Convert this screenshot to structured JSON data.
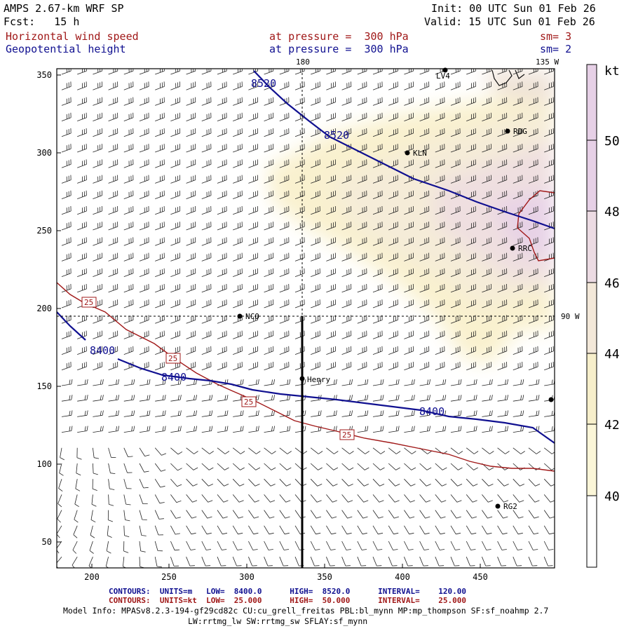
{
  "header": {
    "model_title": "AMPS 2.67-km WRF SP",
    "fcst_label": "Fcst:   15 h",
    "init_label": "Init: 00 UTC Sun 01 Feb 26",
    "valid_label": "Valid: 15 UTC Sun 01 Feb 26",
    "field1_name": "Horizontal wind speed",
    "field1_level": "at pressure =  300 hPa",
    "field1_sm": "sm= 3",
    "field2_name": "Geopotential height",
    "field2_level": "at pressure =  300 hPa",
    "field2_sm": "sm= 2"
  },
  "map": {
    "grid_x_ticks": [
      "200",
      "250",
      "300",
      "350",
      "400",
      "450"
    ],
    "grid_y_ticks": [
      "350",
      "300",
      "250",
      "200",
      "150",
      "100",
      "50"
    ],
    "meridian_labels": {
      "lon_180": "180",
      "lon_135w": "135 W",
      "lon_90w": "90 W"
    },
    "stations": [
      {
        "id": "kln",
        "label": "KLN"
      },
      {
        "id": "rdg",
        "label": "RDG"
      },
      {
        "id": "rrc",
        "label": "RRC"
      },
      {
        "id": "nco",
        "label": "NCO"
      },
      {
        "id": "henry",
        "label": "Henry"
      },
      {
        "id": "rg2",
        "label": "RG2"
      },
      {
        "id": "lv4",
        "label": "LV4"
      }
    ],
    "height_contours": [
      {
        "value": "8520"
      },
      {
        "value": "8400"
      }
    ],
    "height_labels": [
      "8520",
      "8520",
      "8400",
      "8400",
      "8400"
    ],
    "speed_labels": [
      "25",
      "25",
      "25",
      "25"
    ],
    "speed_contour_value": 25
  },
  "colorbar": {
    "unit": "kt",
    "labels": [
      "50",
      "48",
      "46",
      "44",
      "42",
      "40"
    ],
    "colors": [
      "#ffffff",
      "#fbf6d8",
      "#f7efcb",
      "#f3e8d9",
      "#ecdbe3",
      "#e6d0e6"
    ]
  },
  "footer": {
    "contours_height": "CONTOURS:  UNITS=m   LOW=  8400.0      HIGH=  8520.0      INTERVAL=    120.00",
    "contours_speed": "CONTOURS:  UNITS=kt  LOW=  25.000      HIGH=  50.000      INTERVAL=    25.000",
    "model_info_line1": "Model Info: MPASv8.2.3-194-gf29cd82c CU:cu_grell_freitas PBL:bl_mynn MP:mp_thompson SF:sf_noahmp 2.7",
    "model_info_line2": "LW:rrtmg_lw SW:rrtmg_sw SFLAY:sf_mynn"
  }
}
